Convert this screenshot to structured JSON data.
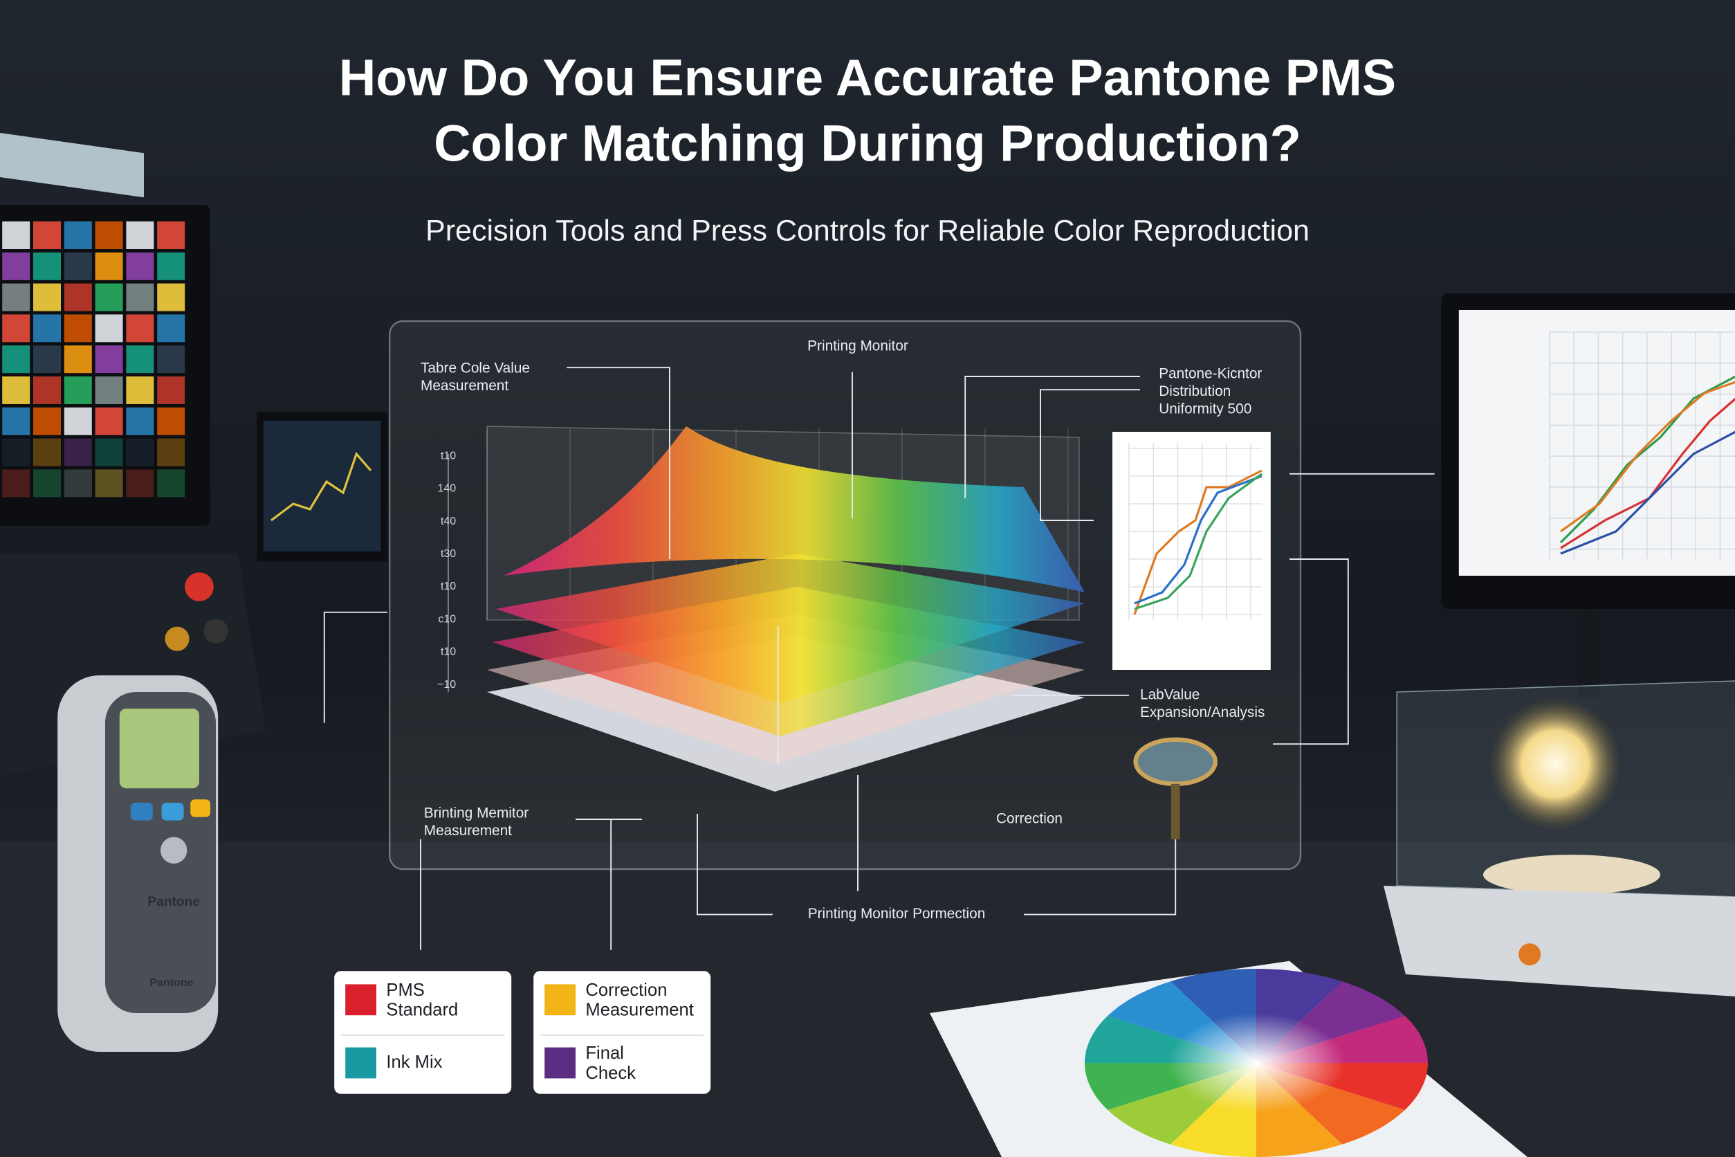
{
  "header": {
    "title_lines": [
      "How Do You Ensure Accurate Pantone PMS",
      "Color Matching During Production?"
    ],
    "subtitle": "Precision Tools and Press Controls for Reliable Color Reproduction"
  },
  "panel": {
    "callouts": [
      {
        "lines": [
          "Tabre Cole Value",
          "Measurement"
        ]
      },
      {
        "lines": [
          "Printing Monitor"
        ]
      },
      {
        "lines": [
          "Pantone-Kicntor",
          "Distribution",
          "Uniformity 500"
        ]
      },
      {
        "lines": [
          "LabValue",
          "Expansion/Analysis"
        ]
      },
      {
        "lines": [
          "Correction"
        ]
      },
      {
        "lines": [
          "Brinting Memitor",
          "Measurement"
        ]
      },
      {
        "lines": [
          "Printing Monitor Pormection"
        ]
      }
    ],
    "axis_labels": [
      "t10",
      "140",
      "t40",
      "t30",
      "t10",
      "c10",
      "t10",
      "−10"
    ]
  },
  "legend_cards": [
    {
      "items": [
        {
          "color": "#d9202c",
          "lines": [
            "PMS",
            "Standard"
          ]
        },
        {
          "color": "#1a9aa0",
          "lines": [
            "Ink Mix"
          ]
        }
      ]
    },
    {
      "items": [
        {
          "color": "#f2b417",
          "lines": [
            "Correction",
            "Measurement"
          ]
        },
        {
          "color": "#5a2d82",
          "lines": [
            "Final",
            "Check"
          ]
        }
      ]
    }
  ],
  "device": {
    "labels": [
      "Pantone",
      "Pantone"
    ]
  }
}
